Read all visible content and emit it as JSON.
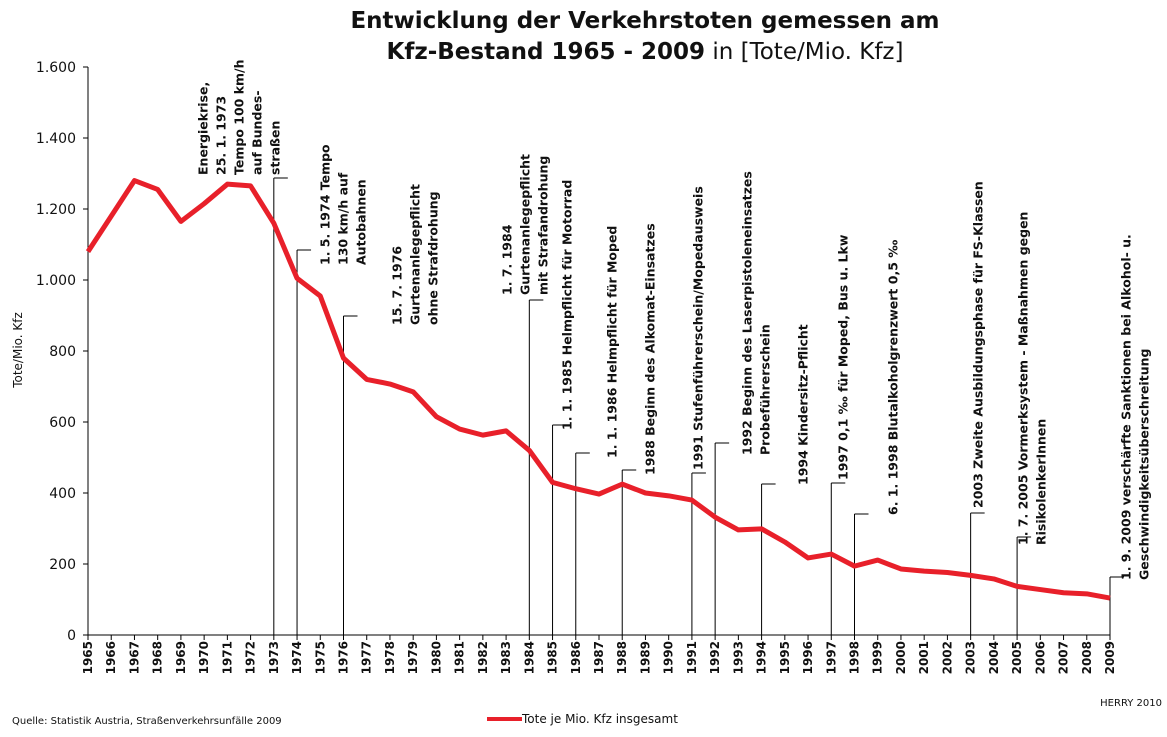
{
  "chart_data": {
    "type": "line",
    "title": {
      "line1": "Entwicklung der Verkehrstoten gemessen am",
      "line2_bold": "Kfz-Bestand 1965 - 2009",
      "line2_rest": " in [Tote/Mio. Kfz]"
    },
    "y_label": "Tote/Mio. Kfz",
    "source": "Quelle: Statistik Austria, Straßenverkehrsunfälle 2009",
    "credit": "HERRY 2010",
    "x": [
      1965,
      1966,
      1967,
      1968,
      1969,
      1970,
      1971,
      1972,
      1973,
      1974,
      1975,
      1976,
      1977,
      1978,
      1979,
      1980,
      1981,
      1982,
      1983,
      1984,
      1985,
      1986,
      1987,
      1988,
      1989,
      1990,
      1991,
      1992,
      1993,
      1994,
      1995,
      1996,
      1997,
      1998,
      1999,
      2000,
      2001,
      2002,
      2003,
      2004,
      2005,
      2006,
      2007,
      2008,
      2009
    ],
    "xlim": [
      1965,
      2009
    ],
    "series": [
      {
        "name": "Tote je Mio. Kfz insgesamt",
        "color": "#e8202a",
        "values": [
          1080,
          1180,
          1280,
          1255,
          1165,
          1215,
          1270,
          1265,
          1160,
          1005,
          955,
          780,
          720,
          707,
          685,
          615,
          580,
          563,
          575,
          520,
          430,
          412,
          397,
          425,
          400,
          392,
          380,
          332,
          296,
          299,
          262,
          217,
          228,
          194,
          211,
          186,
          180,
          176,
          168,
          158,
          137,
          128,
          119,
          116,
          104
        ]
      }
    ],
    "ylim": [
      0,
      1600
    ],
    "yticks": [
      0,
      200,
      400,
      600,
      800,
      {
        "value": 1000,
        "label": "1.000"
      },
      {
        "value": 1200,
        "label": "1.200"
      },
      {
        "value": 1400,
        "label": "1.400"
      },
      {
        "value": 1600,
        "label": "1.600"
      }
    ],
    "annotations": [
      {
        "x": 1973,
        "text": [
          "Energiekrise,",
          "25. 1. 1973",
          "Tempo 100 km/h",
          "auf Bundes-",
          "straßen"
        ]
      },
      {
        "x": 1974,
        "text": [
          "1. 5. 1974 Tempo",
          "130 km/h auf",
          "Autobahnen"
        ]
      },
      {
        "x": 1976,
        "text": [
          "15. 7. 1976",
          "Gurtenanlegepflicht",
          "ohne Strafdrohung"
        ]
      },
      {
        "x": 1984,
        "text": [
          "1. 7. 1984",
          "Gurtenanlegepflicht",
          "mit Strafandrohung"
        ]
      },
      {
        "x": 1985,
        "text": [
          "1. 1. 1985 Helmpflicht für Motorrad"
        ]
      },
      {
        "x": 1986,
        "text": [
          "1. 1. 1986 Helmpflicht für Moped"
        ]
      },
      {
        "x": 1988,
        "text": [
          "1988 Beginn des Alkomat-Einsatzes"
        ]
      },
      {
        "x": 1991,
        "text": [
          "1991 Stufenführerschein/Mopedausweis"
        ]
      },
      {
        "x": 1992,
        "text": [
          "1992 Beginn des Laserpistoleneinsatzes",
          "Probeführerschein"
        ]
      },
      {
        "x": 1994,
        "text": [
          "1994 Kindersitz-Pflicht"
        ]
      },
      {
        "x": 1997,
        "text": [
          "1997 0,1 ‰ für Moped, Bus u. Lkw"
        ]
      },
      {
        "x": 1998,
        "text": [
          "6. 1. 1998 Blutalkoholgrenzwert 0,5 ‰"
        ]
      },
      {
        "x": 2003,
        "text": [
          "2003 Zweite Ausbildungsphase für FS-Klassen"
        ]
      },
      {
        "x": 2005,
        "text": [
          "1. 7. 2005 Vormerksystem - Maßnahmen gegen",
          "RisikolenkerInnen"
        ]
      },
      {
        "x": 2009,
        "text": [
          "1. 9. 2009 verschärfte Sanktionen bei Alkohol- u.",
          "Geschwindigkeitsüberschreitung"
        ]
      }
    ]
  }
}
